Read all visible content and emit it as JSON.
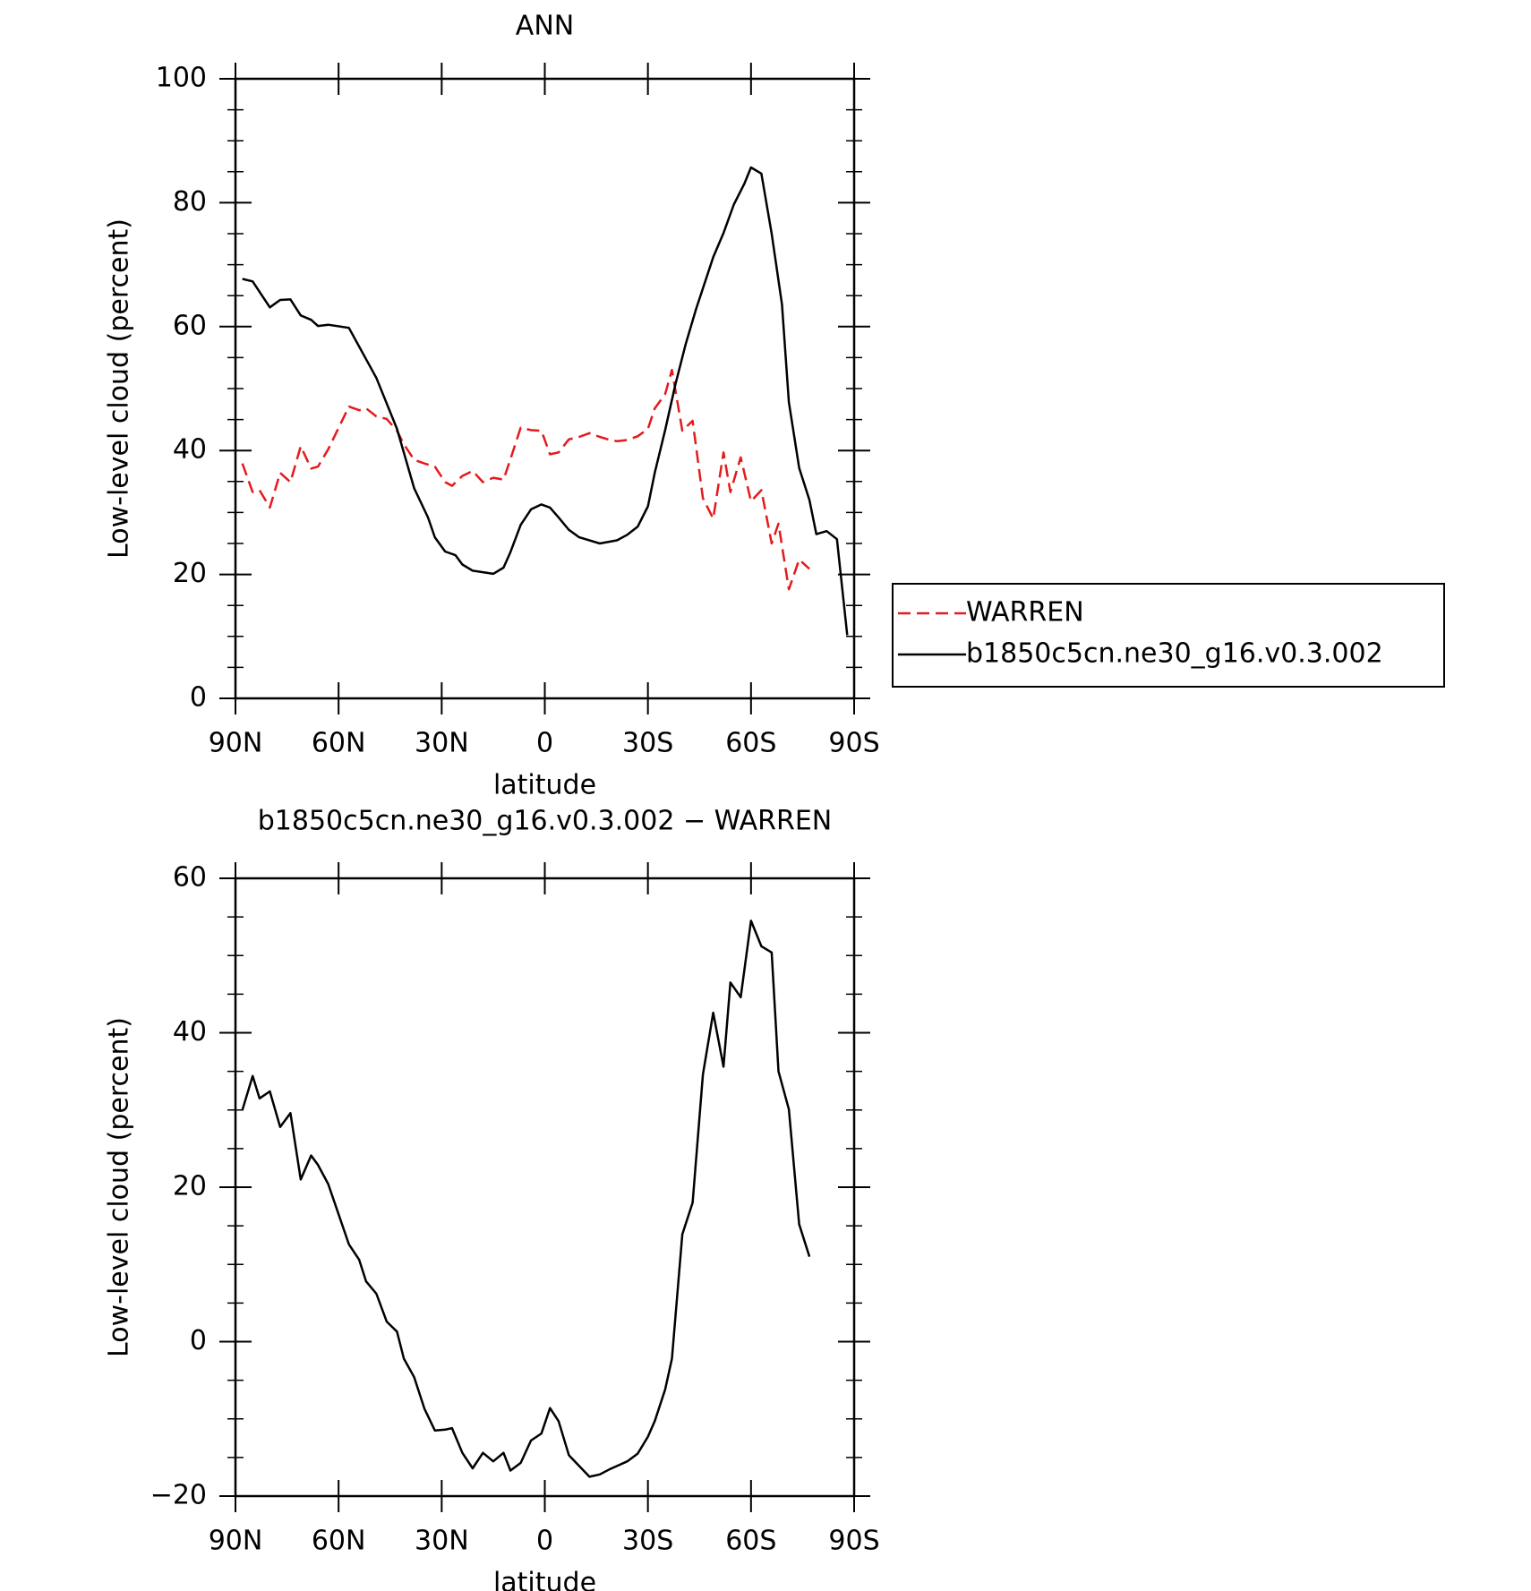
{
  "chart_data": [
    {
      "type": "line",
      "title": "ANN",
      "xlabel": "latitude",
      "ylabel": "Low-level cloud (percent)",
      "xlim": [
        90,
        -90
      ],
      "xticks": [
        {
          "value": 90,
          "label": "90N"
        },
        {
          "value": 60,
          "label": "60N"
        },
        {
          "value": 30,
          "label": "30N"
        },
        0,
        {
          "value": -30,
          "label": "30S"
        },
        {
          "value": -60,
          "label": "60S"
        },
        {
          "value": -90,
          "label": "90S"
        }
      ],
      "ylim": [
        0,
        100
      ],
      "yticks": [
        0,
        20,
        40,
        60,
        80,
        100
      ],
      "yminorticks": [
        5,
        10,
        15,
        25,
        30,
        35,
        45,
        50,
        55,
        65,
        70,
        75,
        85,
        90,
        95
      ],
      "legend": "right",
      "series": [
        {
          "name": "WARREN",
          "color": "#e41a1c",
          "line_style": "dashed",
          "x": [
            88,
            85,
            83,
            80,
            77,
            74,
            71,
            68,
            66,
            63,
            57,
            54,
            52,
            49,
            46,
            43,
            41,
            38,
            35,
            32,
            29,
            27,
            24,
            21,
            18,
            15,
            12,
            10,
            7,
            4,
            1,
            -1.5,
            -4,
            -7,
            -10,
            -13,
            -16,
            -19,
            -21,
            -24,
            -27,
            -30,
            -32,
            -35,
            -37,
            -40,
            -43,
            -46,
            -49,
            -52,
            -54,
            -57,
            -60,
            -63,
            -66,
            -68,
            -71,
            -74,
            -77
          ],
          "values": [
            37.9,
            33.3,
            33.6,
            30.8,
            36.4,
            34.9,
            40.7,
            37.1,
            37.4,
            40.2,
            47.1,
            46.5,
            46.8,
            45.5,
            45.1,
            43.2,
            41.0,
            38.5,
            37.9,
            37.4,
            34.9,
            34.3,
            35.9,
            36.7,
            34.9,
            35.6,
            35.3,
            38.6,
            43.7,
            43.3,
            43.2,
            39.4,
            39.7,
            41.8,
            42.2,
            42.8,
            42.2,
            41.7,
            41.5,
            41.7,
            42.3,
            43.5,
            46.8,
            49.1,
            53.0,
            43.2,
            44.8,
            32.3,
            29.0,
            39.7,
            33.3,
            38.9,
            31.8,
            33.6,
            25.0,
            28.2,
            17.6,
            22.4,
            20.9
          ]
        },
        {
          "name": "b1850c5cn.ne30_g16.v0.3.002",
          "color": "#000000",
          "line_style": "solid",
          "x": [
            88,
            85,
            80,
            77,
            74,
            71,
            68,
            66,
            63,
            57,
            49,
            43,
            38,
            34,
            32,
            29,
            26,
            24,
            21,
            15,
            12,
            10,
            7,
            4,
            1,
            -1.5,
            -4,
            -7,
            -10,
            -16,
            -21,
            -24,
            -27,
            -30,
            -32,
            -35,
            -38,
            -41,
            -44,
            -49,
            -52,
            -55,
            -58,
            -60,
            -63,
            -66,
            -69,
            -71,
            -74,
            -77,
            -79,
            -82,
            -85,
            -88
          ],
          "values": [
            67.7,
            67.3,
            63.1,
            64.3,
            64.4,
            61.8,
            61.1,
            60.1,
            60.3,
            59.8,
            51.7,
            43.5,
            33.9,
            29.2,
            26.0,
            23.7,
            23.1,
            21.6,
            20.6,
            20.1,
            21.1,
            23.6,
            28.0,
            30.5,
            31.3,
            30.8,
            29.2,
            27.2,
            26.0,
            25.0,
            25.5,
            26.4,
            27.7,
            31.0,
            36.4,
            43.3,
            50.7,
            57.2,
            62.8,
            71.2,
            75.1,
            79.7,
            83.0,
            85.7,
            84.7,
            75.0,
            63.6,
            47.8,
            37.2,
            32.0,
            26.5,
            27.0,
            25.7,
            10.2
          ]
        }
      ]
    },
    {
      "type": "line",
      "title": "b1850c5cn.ne30_g16.v0.3.002 − WARREN",
      "xlabel": "latitude",
      "ylabel": "Low-level cloud (percent)",
      "xlim": [
        90,
        -90
      ],
      "xticks": [
        {
          "value": 90,
          "label": "90N"
        },
        {
          "value": 60,
          "label": "60N"
        },
        {
          "value": 30,
          "label": "30N"
        },
        0,
        {
          "value": -30,
          "label": "30S"
        },
        {
          "value": -60,
          "label": "60S"
        },
        {
          "value": -90,
          "label": "90S"
        }
      ],
      "ylim": [
        -20,
        60
      ],
      "yticks": [
        {
          "value": -20,
          "label": "−20"
        },
        0,
        20,
        40,
        60
      ],
      "yminorticks": [
        -15,
        -10,
        -5,
        5,
        10,
        15,
        25,
        30,
        35,
        45,
        50,
        55
      ],
      "series": [
        {
          "color": "#000000",
          "line_style": "solid",
          "x": [
            88,
            85,
            83,
            80,
            77,
            74,
            71,
            68,
            66,
            63,
            57,
            54,
            52,
            49,
            46,
            43,
            41,
            38,
            35,
            32,
            29,
            27,
            24,
            21,
            18,
            15,
            12,
            10,
            7,
            4,
            1,
            -1.5,
            -4,
            -7,
            -10,
            -13,
            -16,
            -19,
            -21,
            -24,
            -27,
            -30,
            -32,
            -35,
            -37,
            -40,
            -43,
            -46,
            -49,
            -52,
            -54,
            -57,
            -60,
            -63,
            -66,
            -68,
            -71,
            -74,
            -77
          ],
          "values": [
            30.0,
            34.4,
            31.5,
            32.4,
            27.8,
            29.6,
            21.0,
            24.1,
            22.9,
            20.4,
            12.6,
            10.6,
            7.8,
            6.2,
            2.6,
            1.3,
            -2.2,
            -4.6,
            -8.7,
            -11.5,
            -11.4,
            -11.2,
            -14.4,
            -16.4,
            -14.4,
            -15.5,
            -14.4,
            -16.7,
            -15.7,
            -12.8,
            -11.9,
            -8.6,
            -10.3,
            -14.7,
            -16.1,
            -17.5,
            -17.2,
            -16.5,
            -16.1,
            -15.5,
            -14.5,
            -12.3,
            -10.3,
            -6.2,
            -2.2,
            13.9,
            18.0,
            34.6,
            42.6,
            35.6,
            46.5,
            44.6,
            54.5,
            51.2,
            50.4,
            35.0,
            30.1,
            15.2,
            11.0
          ]
        }
      ]
    }
  ]
}
